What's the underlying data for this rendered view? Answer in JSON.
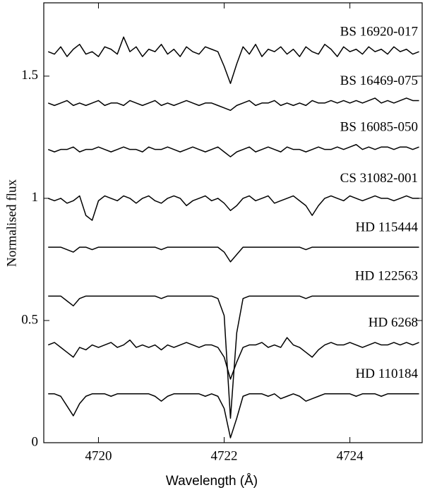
{
  "chart_data": {
    "type": "line",
    "xlabel": "Wavelength (Å)",
    "ylabel": "Normalised flux",
    "xlim": [
      4719.13,
      4725.15
    ],
    "ylim": [
      0,
      1.8
    ],
    "xticks": [
      4720,
      4722,
      4724
    ],
    "yticks": [
      0,
      0.5,
      1,
      1.5
    ],
    "x": [
      4719.2,
      4719.3,
      4719.4,
      4719.5,
      4719.6,
      4719.7,
      4719.8,
      4719.9,
      4720.0,
      4720.1,
      4720.2,
      4720.3,
      4720.4,
      4720.5,
      4720.6,
      4720.7,
      4720.8,
      4720.9,
      4721.0,
      4721.1,
      4721.2,
      4721.3,
      4721.4,
      4721.5,
      4721.6,
      4721.7,
      4721.8,
      4721.9,
      4722.0,
      4722.1,
      4722.2,
      4722.3,
      4722.4,
      4722.5,
      4722.6,
      4722.7,
      4722.8,
      4722.9,
      4723.0,
      4723.1,
      4723.2,
      4723.3,
      4723.4,
      4723.5,
      4723.6,
      4723.7,
      4723.8,
      4723.9,
      4724.0,
      4724.1,
      4724.2,
      4724.3,
      4724.4,
      4724.5,
      4724.6,
      4724.7,
      4724.8,
      4724.9,
      4725.0,
      4725.1
    ],
    "series": [
      {
        "name": "BS 16920-017",
        "color": "#000000",
        "values": [
          1.6,
          1.59,
          1.62,
          1.58,
          1.61,
          1.63,
          1.59,
          1.6,
          1.58,
          1.62,
          1.61,
          1.59,
          1.66,
          1.6,
          1.62,
          1.58,
          1.61,
          1.6,
          1.63,
          1.59,
          1.61,
          1.58,
          1.62,
          1.6,
          1.59,
          1.62,
          1.61,
          1.6,
          1.54,
          1.47,
          1.55,
          1.62,
          1.59,
          1.63,
          1.58,
          1.61,
          1.6,
          1.62,
          1.59,
          1.61,
          1.58,
          1.62,
          1.6,
          1.59,
          1.63,
          1.61,
          1.58,
          1.62,
          1.6,
          1.61,
          1.59,
          1.62,
          1.6,
          1.61,
          1.59,
          1.62,
          1.6,
          1.61,
          1.59,
          1.6
        ]
      },
      {
        "name": "BS 16469-075",
        "color": "#000000",
        "values": [
          1.39,
          1.38,
          1.39,
          1.4,
          1.38,
          1.39,
          1.38,
          1.39,
          1.4,
          1.38,
          1.39,
          1.39,
          1.38,
          1.4,
          1.39,
          1.38,
          1.39,
          1.4,
          1.38,
          1.39,
          1.38,
          1.39,
          1.4,
          1.39,
          1.38,
          1.39,
          1.39,
          1.38,
          1.37,
          1.36,
          1.38,
          1.39,
          1.4,
          1.38,
          1.39,
          1.39,
          1.4,
          1.38,
          1.39,
          1.38,
          1.39,
          1.38,
          1.4,
          1.39,
          1.39,
          1.4,
          1.39,
          1.4,
          1.39,
          1.4,
          1.39,
          1.4,
          1.41,
          1.39,
          1.4,
          1.39,
          1.4,
          1.41,
          1.4,
          1.4
        ]
      },
      {
        "name": "BS 16085-050",
        "color": "#000000",
        "values": [
          1.2,
          1.19,
          1.2,
          1.2,
          1.21,
          1.19,
          1.2,
          1.2,
          1.21,
          1.2,
          1.19,
          1.2,
          1.21,
          1.2,
          1.2,
          1.19,
          1.21,
          1.2,
          1.2,
          1.21,
          1.2,
          1.19,
          1.2,
          1.21,
          1.2,
          1.19,
          1.2,
          1.21,
          1.19,
          1.17,
          1.19,
          1.2,
          1.21,
          1.19,
          1.2,
          1.21,
          1.2,
          1.19,
          1.21,
          1.2,
          1.2,
          1.19,
          1.2,
          1.21,
          1.2,
          1.2,
          1.21,
          1.2,
          1.21,
          1.22,
          1.2,
          1.21,
          1.2,
          1.21,
          1.21,
          1.2,
          1.21,
          1.21,
          1.2,
          1.21
        ]
      },
      {
        "name": "CS 31082-001",
        "color": "#000000",
        "values": [
          1.0,
          0.99,
          1.0,
          0.98,
          0.99,
          1.01,
          0.93,
          0.91,
          0.99,
          1.01,
          1.0,
          0.99,
          1.01,
          1.0,
          0.98,
          1.0,
          1.01,
          0.99,
          0.98,
          1.0,
          1.01,
          1.0,
          0.97,
          0.99,
          1.0,
          1.01,
          0.99,
          1.0,
          0.98,
          0.95,
          0.97,
          1.0,
          1.01,
          0.99,
          1.0,
          1.01,
          0.98,
          0.99,
          1.0,
          1.01,
          0.99,
          0.97,
          0.93,
          0.97,
          1.0,
          1.01,
          1.0,
          0.99,
          1.01,
          1.0,
          0.99,
          1.0,
          1.01,
          1.0,
          1.0,
          0.99,
          1.0,
          1.01,
          1.0,
          1.0
        ]
      },
      {
        "name": "HD 115444",
        "color": "#000000",
        "values": [
          0.8,
          0.8,
          0.8,
          0.79,
          0.78,
          0.8,
          0.8,
          0.79,
          0.8,
          0.8,
          0.8,
          0.8,
          0.8,
          0.8,
          0.8,
          0.8,
          0.8,
          0.8,
          0.79,
          0.8,
          0.8,
          0.8,
          0.8,
          0.8,
          0.8,
          0.8,
          0.8,
          0.8,
          0.78,
          0.74,
          0.77,
          0.8,
          0.8,
          0.8,
          0.8,
          0.8,
          0.8,
          0.8,
          0.8,
          0.8,
          0.8,
          0.79,
          0.8,
          0.8,
          0.8,
          0.8,
          0.8,
          0.8,
          0.8,
          0.8,
          0.8,
          0.8,
          0.8,
          0.8,
          0.8,
          0.8,
          0.8,
          0.8,
          0.8,
          0.8
        ]
      },
      {
        "name": "HD 122563",
        "color": "#000000",
        "values": [
          0.6,
          0.6,
          0.6,
          0.58,
          0.56,
          0.59,
          0.6,
          0.6,
          0.6,
          0.6,
          0.6,
          0.6,
          0.6,
          0.6,
          0.6,
          0.6,
          0.6,
          0.6,
          0.59,
          0.6,
          0.6,
          0.6,
          0.6,
          0.6,
          0.6,
          0.6,
          0.6,
          0.59,
          0.52,
          0.1,
          0.45,
          0.59,
          0.6,
          0.6,
          0.6,
          0.6,
          0.6,
          0.6,
          0.6,
          0.6,
          0.6,
          0.59,
          0.6,
          0.6,
          0.6,
          0.6,
          0.6,
          0.6,
          0.6,
          0.6,
          0.6,
          0.6,
          0.6,
          0.6,
          0.6,
          0.6,
          0.6,
          0.6,
          0.6,
          0.6
        ]
      },
      {
        "name": "HD 6268",
        "color": "#000000",
        "values": [
          0.4,
          0.41,
          0.39,
          0.37,
          0.35,
          0.39,
          0.38,
          0.4,
          0.39,
          0.4,
          0.41,
          0.39,
          0.4,
          0.42,
          0.39,
          0.4,
          0.39,
          0.4,
          0.38,
          0.4,
          0.39,
          0.4,
          0.41,
          0.4,
          0.39,
          0.4,
          0.4,
          0.39,
          0.35,
          0.26,
          0.33,
          0.39,
          0.4,
          0.4,
          0.41,
          0.39,
          0.4,
          0.39,
          0.43,
          0.4,
          0.39,
          0.37,
          0.35,
          0.38,
          0.4,
          0.41,
          0.4,
          0.4,
          0.41,
          0.4,
          0.39,
          0.4,
          0.41,
          0.4,
          0.4,
          0.41,
          0.4,
          0.41,
          0.4,
          0.41
        ]
      },
      {
        "name": "HD 110184",
        "color": "#000000",
        "values": [
          0.2,
          0.2,
          0.19,
          0.15,
          0.11,
          0.16,
          0.19,
          0.2,
          0.2,
          0.2,
          0.19,
          0.2,
          0.2,
          0.2,
          0.2,
          0.2,
          0.2,
          0.19,
          0.17,
          0.19,
          0.2,
          0.2,
          0.2,
          0.2,
          0.2,
          0.19,
          0.2,
          0.19,
          0.14,
          0.02,
          0.1,
          0.19,
          0.2,
          0.2,
          0.2,
          0.19,
          0.2,
          0.18,
          0.19,
          0.2,
          0.19,
          0.17,
          0.18,
          0.19,
          0.2,
          0.2,
          0.2,
          0.2,
          0.2,
          0.19,
          0.2,
          0.2,
          0.2,
          0.19,
          0.2,
          0.2,
          0.2,
          0.2,
          0.2,
          0.2
        ]
      }
    ]
  }
}
